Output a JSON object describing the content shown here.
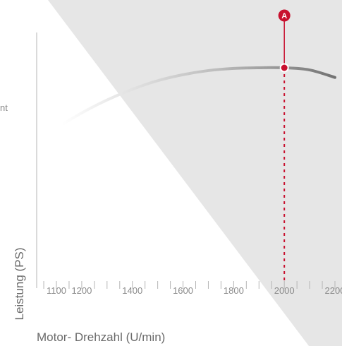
{
  "chart_data": {
    "type": "line",
    "title": "",
    "xlabel": "Motor- Drehzahl (U/min)",
    "ylabel": "Leistung (PS)",
    "x_tick_labels": [
      "1100",
      "1200",
      "1400",
      "1600",
      "1800",
      "2000",
      "2200"
    ],
    "xlim": [
      1050,
      2250
    ],
    "grid": false,
    "series": [
      {
        "color": "#7a7a7a",
        "points": [
          {
            "x": 1100,
            "y": 0.72
          },
          {
            "x": 1200,
            "y": 0.79
          },
          {
            "x": 1300,
            "y": 0.85
          },
          {
            "x": 1400,
            "y": 0.9
          },
          {
            "x": 1500,
            "y": 0.94
          },
          {
            "x": 1600,
            "y": 0.968
          },
          {
            "x": 1700,
            "y": 0.987
          },
          {
            "x": 1800,
            "y": 0.997
          },
          {
            "x": 1900,
            "y": 1.0
          },
          {
            "x": 2000,
            "y": 1.0
          },
          {
            "x": 2100,
            "y": 0.99
          },
          {
            "x": 2200,
            "y": 0.955
          }
        ]
      }
    ],
    "annotations": [
      {
        "label": "A",
        "x": 2000,
        "y": 1.0,
        "color": "#c8102e",
        "line_style": "dashed"
      }
    ],
    "ylim": [
      0,
      1.1
    ]
  },
  "edge_text": "nt",
  "colors": {
    "shade": "#e6e6e6",
    "axis": "#b5b5b5",
    "accent": "#c8102e"
  }
}
